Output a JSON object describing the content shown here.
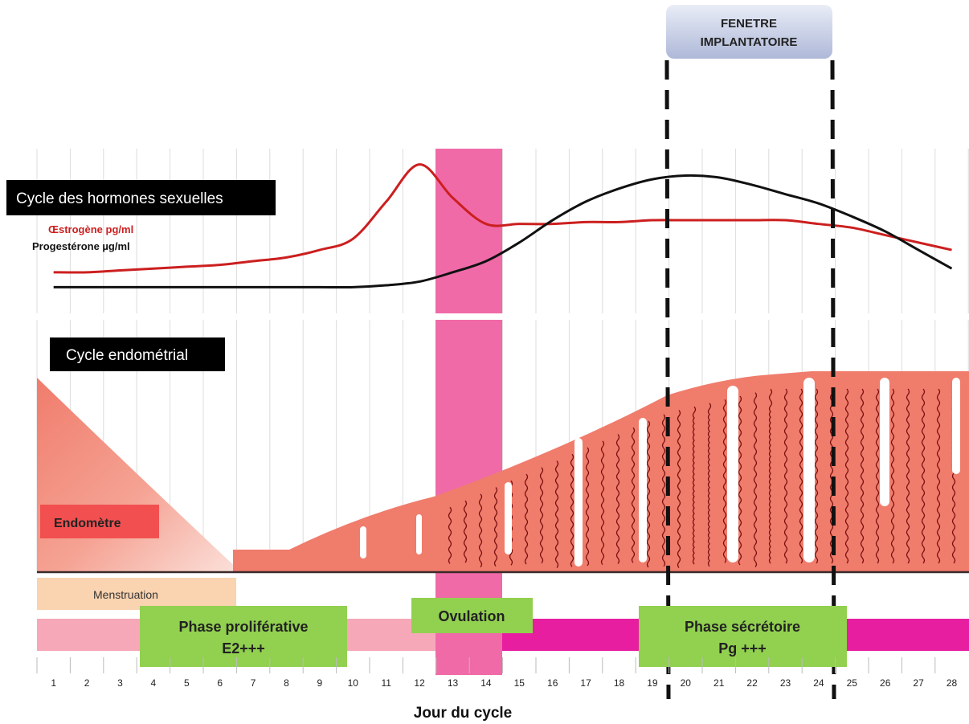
{
  "window": {
    "title": "FENETRE",
    "subtitle": "IMPLANTATOIRE"
  },
  "hormones": {
    "title": "Cycle des hormones sexuelles",
    "estrogen_label": "Œstrogène pg/ml",
    "progesterone_label": "Progestérone µg/ml"
  },
  "endometrium": {
    "title": "Cycle endométrial",
    "tissue_label": "Endomètre"
  },
  "phases": {
    "menstruation": "Menstruation",
    "proliferative_line1": "Phase proliférative",
    "proliferative_line2": "E2+++",
    "ovulation": "Ovulation",
    "secretory_line1": "Phase sécrétoire",
    "secretory_line2": "Pg +++"
  },
  "axis": {
    "xlabel": "Jour du cycle",
    "days": [
      1,
      2,
      3,
      4,
      5,
      6,
      7,
      8,
      9,
      10,
      11,
      12,
      13,
      14,
      15,
      16,
      17,
      18,
      19,
      20,
      21,
      22,
      23,
      24,
      25,
      26,
      27,
      28
    ]
  },
  "colors": {
    "estrogen": "#cc1f1f",
    "progesterone": "#111111",
    "ovulation_band": "#f06aa8",
    "endometrium": "#f07c6c",
    "label_green": "#92d050",
    "menstruation_bar": "#fad3b0",
    "early_pink": "#f7a8b8",
    "late_magenta": "#e81ea0"
  },
  "chart_data": {
    "type": "line",
    "x": [
      1,
      2,
      3,
      4,
      5,
      6,
      7,
      8,
      9,
      10,
      11,
      12,
      13,
      14,
      15,
      16,
      17,
      18,
      19,
      20,
      21,
      22,
      23,
      24,
      25,
      26,
      27,
      28
    ],
    "series": [
      {
        "name": "Œstrogène pg/ml",
        "values": [
          10,
          10,
          11,
          12,
          13,
          14,
          16,
          18,
          22,
          28,
          48,
          68,
          50,
          36,
          36,
          36,
          37,
          37,
          38,
          38,
          38,
          38,
          38,
          36,
          34,
          30,
          26,
          22
        ]
      },
      {
        "name": "Progestérone µg/ml",
        "values": [
          2,
          2,
          2,
          2,
          2,
          2,
          2,
          2,
          2,
          2,
          3,
          5,
          10,
          16,
          26,
          38,
          48,
          55,
          60,
          62,
          61,
          57,
          52,
          47,
          40,
          32,
          22,
          12
        ]
      }
    ],
    "xlabel": "Jour du cycle",
    "ovulation_days": [
      13,
      14
    ],
    "implantation_window_days": [
      20,
      24
    ]
  }
}
